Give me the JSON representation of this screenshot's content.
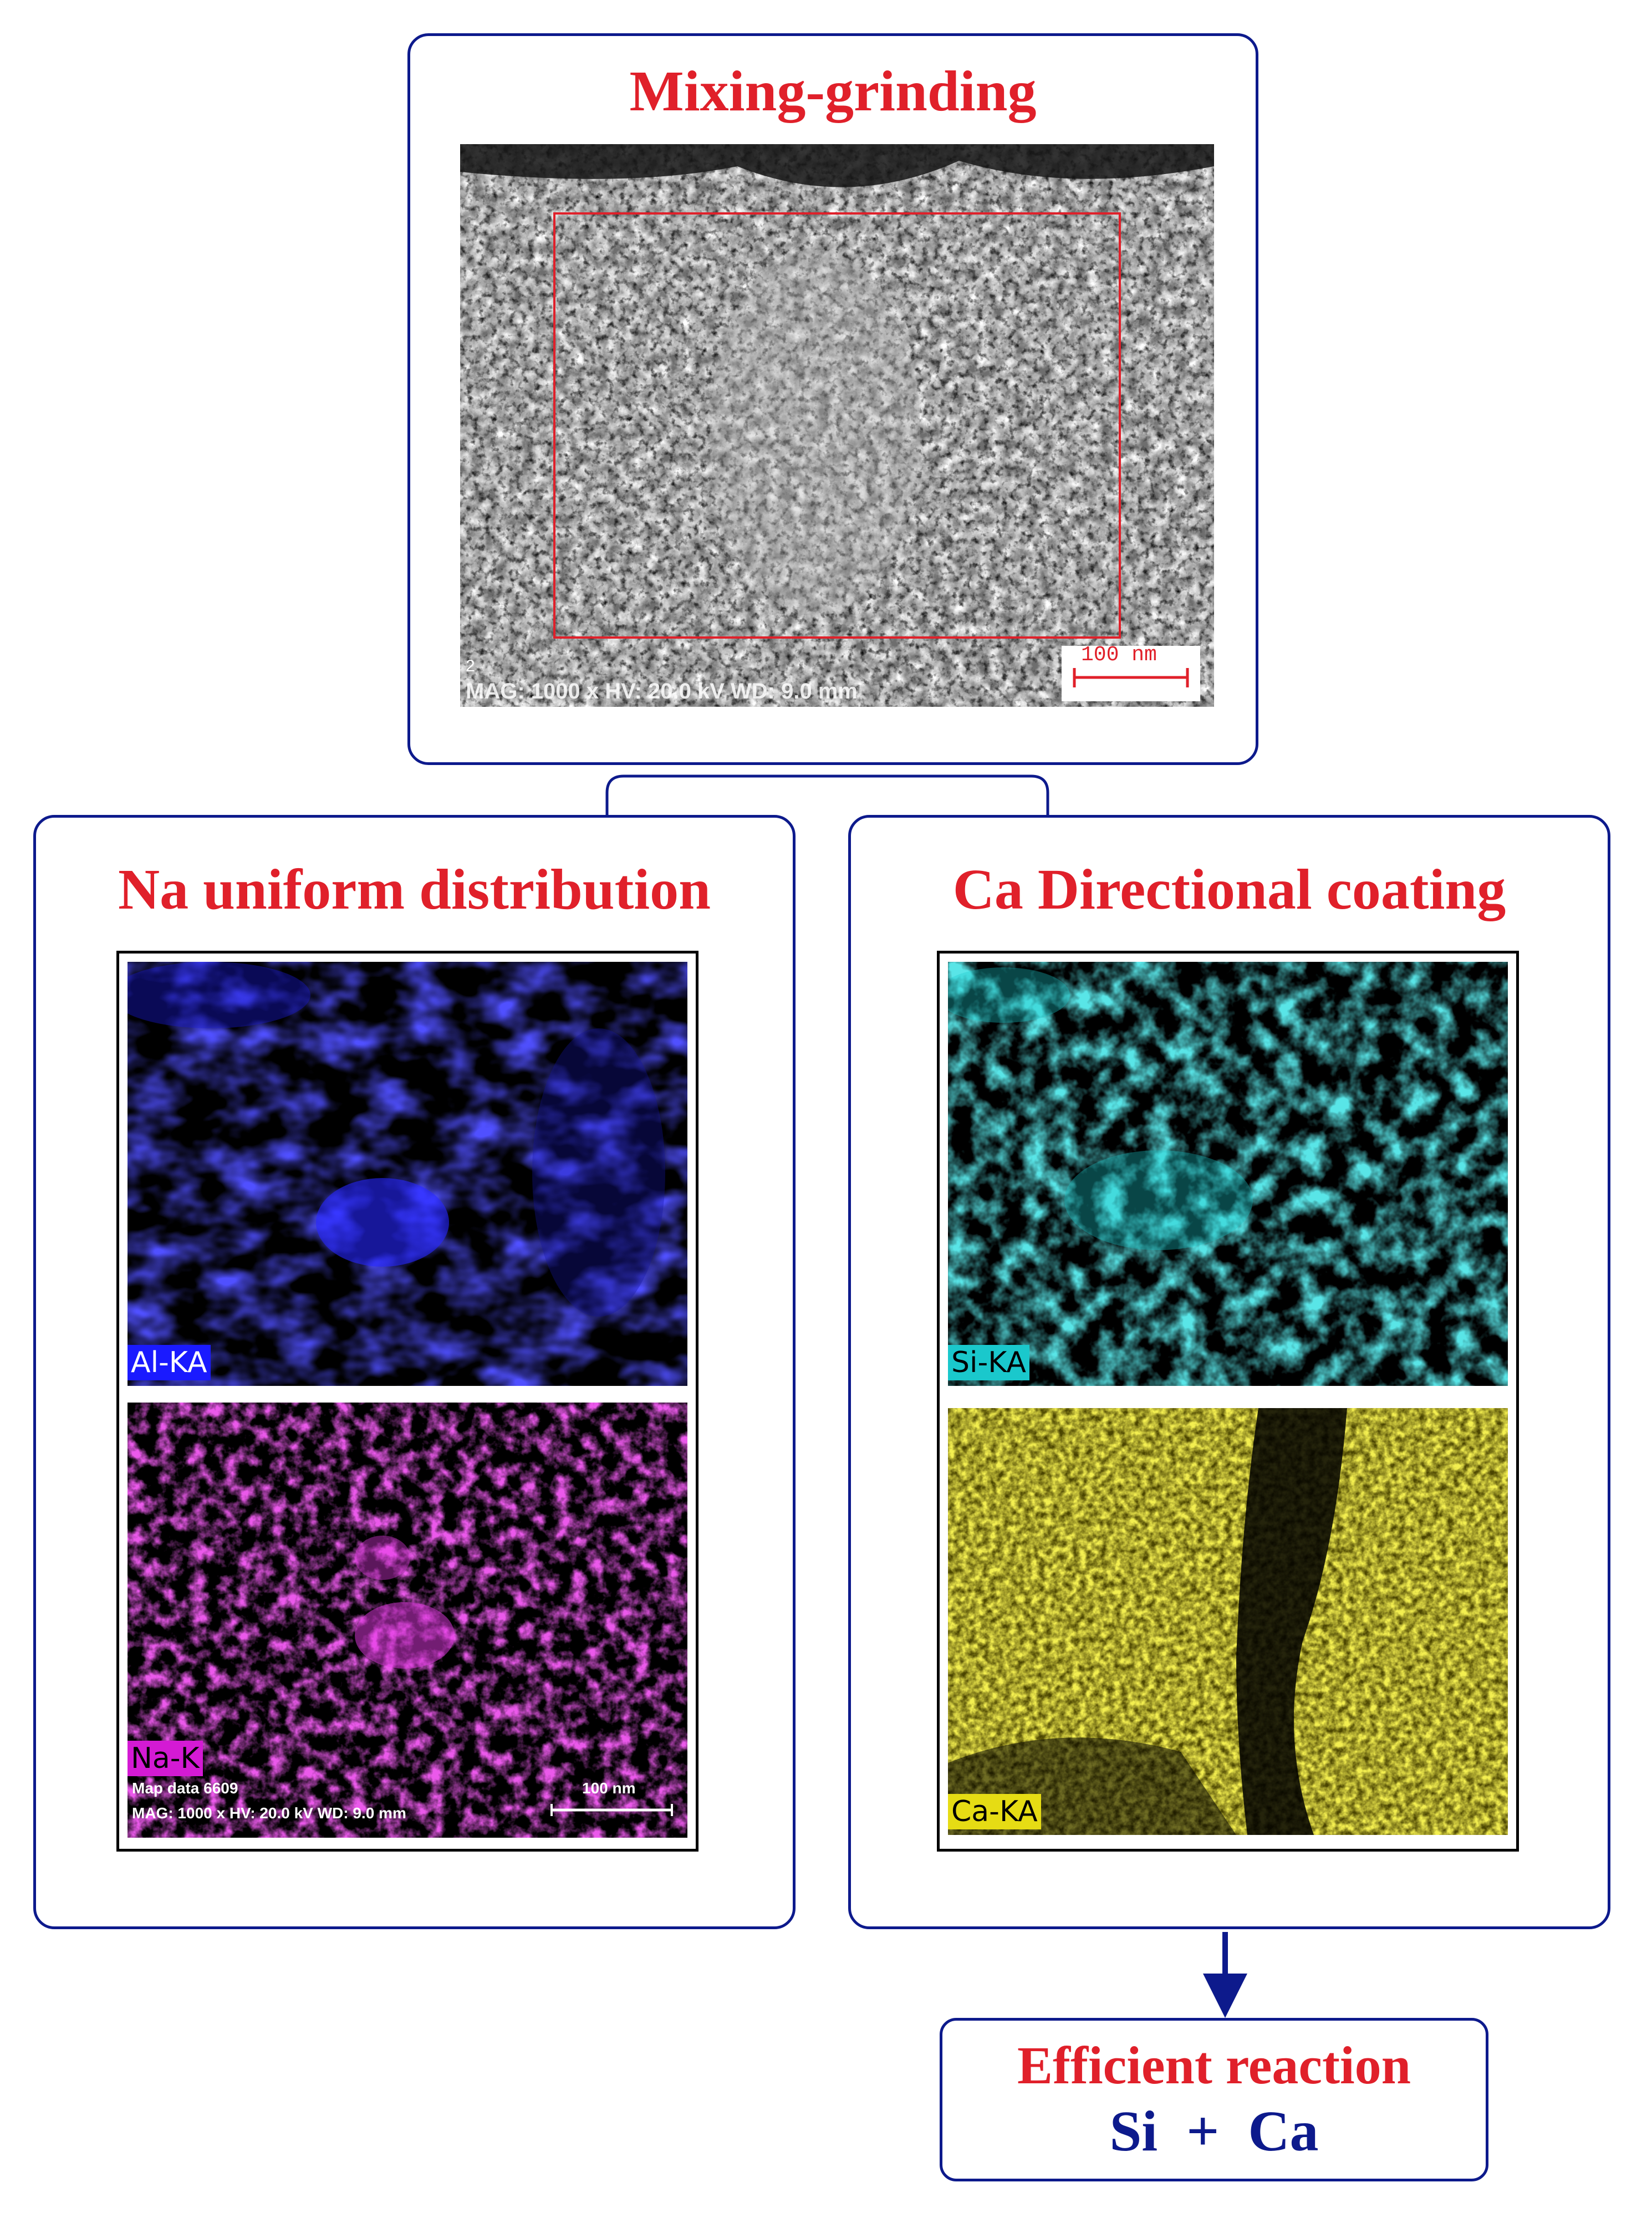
{
  "top_panel": {
    "title": "Mixing-grinding",
    "scalebar_label": "100 nm",
    "image_index": "2",
    "footer": "MAG: 1000 x  HV: 20.0 kV  WD: 9.0 mm"
  },
  "left_panel": {
    "title": "Na uniform distribution",
    "map_top_label": "Al-KA",
    "map_bottom_label": "Na-K",
    "map_data": "Map data 6609",
    "footer": "MAG: 1000 x  HV: 20.0 kV  WD: 9.0 mm",
    "scalebar_label": "100 nm"
  },
  "right_panel": {
    "title": "Ca  Directional  coating",
    "map_top_label": "Si-KA",
    "map_bottom_label": "Ca-KA"
  },
  "result_box": {
    "line1": "Efficient reaction",
    "line2": "Si  +  Ca"
  },
  "colors": {
    "border": "#0d1a8c",
    "title": "#e0202a",
    "al": "#1a1aff",
    "na": "#d41ad4",
    "si": "#1ac8cc",
    "ca": "#e6dc14"
  }
}
